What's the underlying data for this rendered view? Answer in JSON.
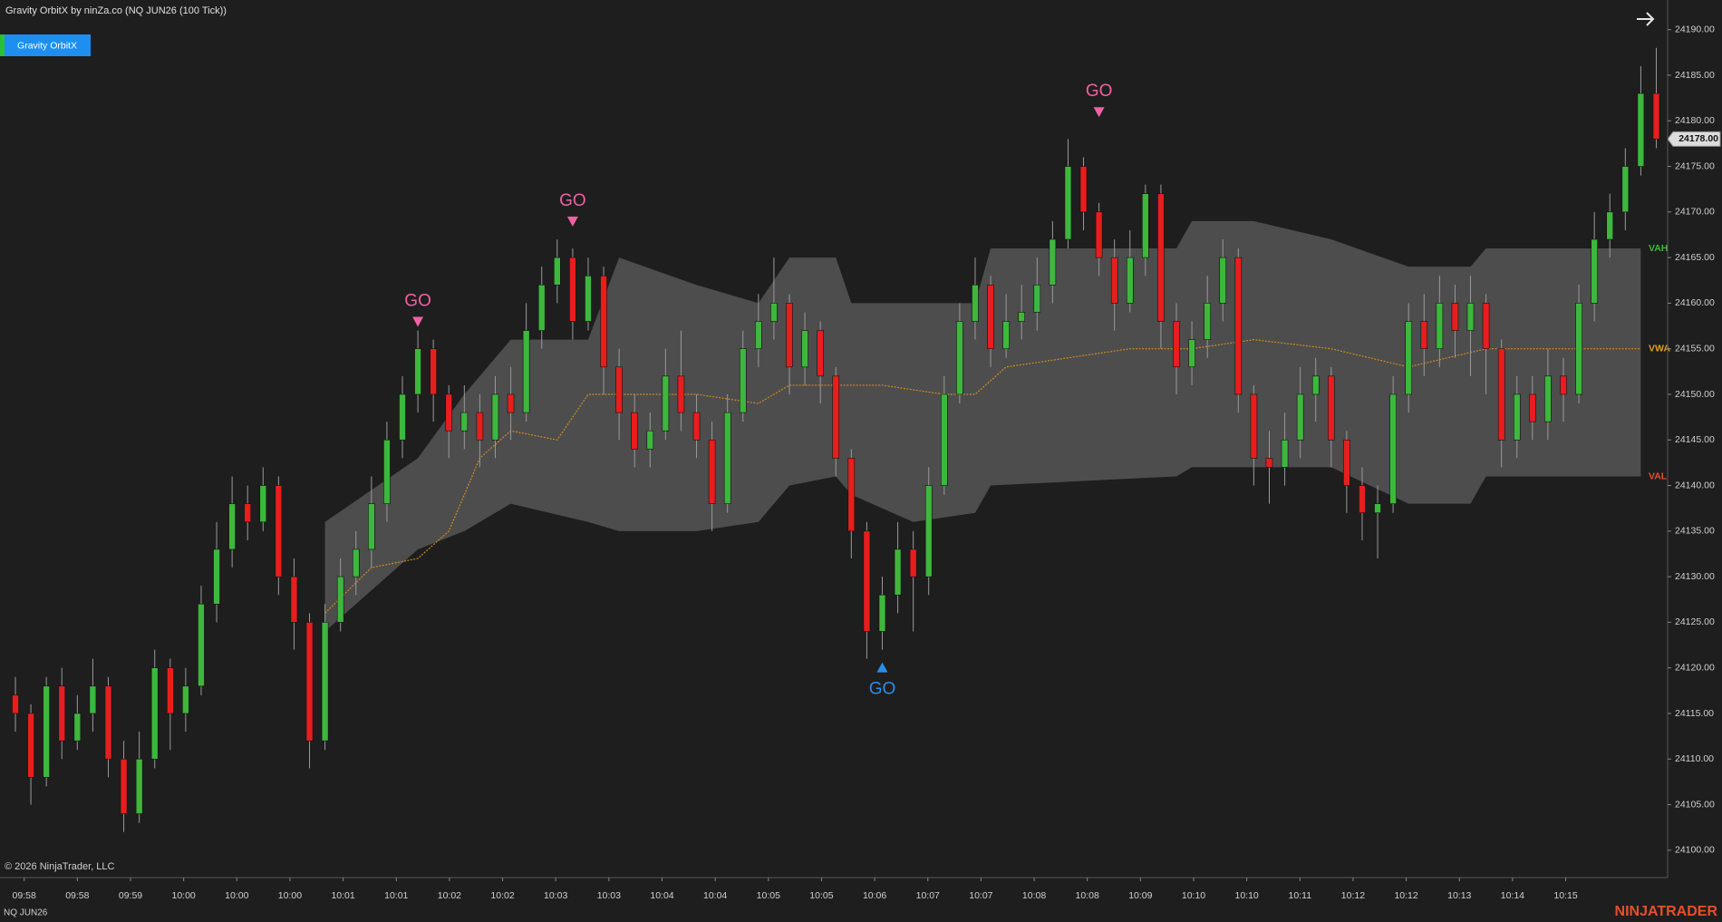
{
  "chart_data": {
    "type": "candlestick",
    "title": "Gravity OrbitX by ninZa.co (NQ JUN26 (100 Tick))",
    "button": "Gravity OrbitX",
    "copyright": "© 2026 NinjaTrader, LLC",
    "instrument": "NQ JUN26",
    "brand": "NINJATRADER",
    "up_color": "#3db83d",
    "down_color": "#e81e1e",
    "ylim": [
      24097,
      24193.25
    ],
    "yticks": [
      {
        "value": 24100,
        "label": "24100.00"
      },
      {
        "value": 24105,
        "label": "24105.00"
      },
      {
        "value": 24110,
        "label": "24110.00"
      },
      {
        "value": 24115,
        "label": "24115.00"
      },
      {
        "value": 24120,
        "label": "24120.00"
      },
      {
        "value": 24125,
        "label": "24125.00"
      },
      {
        "value": 24130,
        "label": "24130.00"
      },
      {
        "value": 24135,
        "label": "24135.00"
      },
      {
        "value": 24140,
        "label": "24140.00"
      },
      {
        "value": 24145,
        "label": "24145.00"
      },
      {
        "value": 24150,
        "label": "24150.00"
      },
      {
        "value": 24155,
        "label": "24155.00"
      },
      {
        "value": 24160,
        "label": "24160.00"
      },
      {
        "value": 24165,
        "label": "24165.00"
      },
      {
        "value": 24170,
        "label": "24170.00"
      },
      {
        "value": 24175,
        "label": "24175.00"
      },
      {
        "value": 24180,
        "label": "24180.00"
      },
      {
        "value": 24185,
        "label": "24185.00"
      },
      {
        "value": 24190,
        "label": "24190.00"
      }
    ],
    "time_labels": [
      "09:58",
      "09:58",
      "09:59",
      "10:00",
      "10:00",
      "10:00",
      "10:01",
      "10:01",
      "10:02",
      "10:02",
      "10:03",
      "10:03",
      "10:04",
      "10:04",
      "10:05",
      "10:05",
      "10:06",
      "10:07",
      "10:07",
      "10:08",
      "10:08",
      "10:09",
      "10:10",
      "10:10",
      "10:11",
      "10:12",
      "10:12",
      "10:13",
      "10:14",
      "10:15"
    ],
    "open": [
      24117,
      24115,
      24108,
      24118,
      24112,
      24115,
      24118,
      24110,
      24104,
      24110,
      24120,
      24115,
      24118,
      24127,
      24133,
      24138,
      24136,
      24140,
      24130,
      24125,
      24112,
      24125,
      24130,
      24133,
      24138,
      24145,
      24150,
      24155,
      24150,
      24146,
      24148,
      24145,
      24150,
      24148,
      24157,
      24162,
      24165,
      24158,
      24163,
      24153,
      24148,
      24144,
      24146,
      24152,
      24148,
      24145,
      24138,
      24148,
      24155,
      24158,
      24160,
      24153,
      24157,
      24152,
      24143,
      24135,
      24124,
      24128,
      24133,
      24130,
      24140,
      24150,
      24158,
      24162,
      24155,
      24158,
      24159,
      24162,
      24167,
      24175,
      24170,
      24165,
      24160,
      24165,
      24172,
      24158,
      24153,
      24156,
      24160,
      24165,
      24150,
      24143,
      24142,
      24145,
      24150,
      24152,
      24145,
      24140,
      24137,
      24138,
      24150,
      24158,
      24155,
      24160,
      24157,
      24160,
      24155,
      24145,
      24150,
      24147,
      24152,
      24150,
      24160,
      24167,
      24170,
      24175,
      24183
    ],
    "high": [
      24119,
      24116,
      24119,
      24120,
      24117,
      24121,
      24119,
      24112,
      24113,
      24122,
      24121,
      24120,
      24129,
      24136,
      24141,
      24140,
      24142,
      24141,
      24132,
      24126,
      24127,
      24132,
      24135,
      24141,
      24147,
      24152,
      24157,
      24156,
      24151,
      24151,
      24150,
      24152,
      24153,
      24160,
      24164,
      24167,
      24166,
      24165,
      24164,
      24155,
      24150,
      24148,
      24155,
      24157,
      24150,
      24147,
      24150,
      24157,
      24161,
      24165,
      24161,
      24159,
      24158,
      24153,
      24144,
      24136,
      24130,
      24136,
      24135,
      24142,
      24152,
      24160,
      24165,
      24163,
      24161,
      24162,
      24165,
      24169,
      24178,
      24176,
      24171,
      24167,
      24168,
      24173,
      24173,
      24160,
      24158,
      24163,
      24167,
      24166,
      24151,
      24146,
      24148,
      24153,
      24154,
      24153,
      24146,
      24142,
      24140,
      24152,
      24160,
      24161,
      24163,
      24162,
      24163,
      24161,
      24156,
      24152,
      24152,
      24155,
      24154,
      24162,
      24170,
      24172,
      24177,
      24186,
      24188
    ],
    "low": [
      24113,
      24105,
      24107,
      24110,
      24111,
      24113,
      24108,
      24102,
      24103,
      24109,
      24111,
      24113,
      24117,
      24125,
      24131,
      24134,
      24135,
      24128,
      24122,
      24109,
      24111,
      24124,
      24128,
      24131,
      24136,
      24143,
      24148,
      24147,
      24143,
      24144,
      24142,
      24143,
      24145,
      24147,
      24155,
      24160,
      24156,
      24157,
      24150,
      24145,
      24142,
      24142,
      24145,
      24146,
      24143,
      24135,
      24137,
      24147,
      24153,
      24156,
      24150,
      24151,
      24149,
      24141,
      24132,
      24121,
      24122,
      24126,
      24124,
      24128,
      24139,
      24149,
      24156,
      24153,
      24154,
      24156,
      24157,
      24160,
      24166,
      24168,
      24163,
      24157,
      24159,
      24163,
      24155,
      24150,
      24151,
      24154,
      24158,
      24148,
      24140,
      24138,
      24140,
      24143,
      24147,
      24142,
      24137,
      24134,
      24132,
      24137,
      24148,
      24152,
      24153,
      24154,
      24152,
      24150,
      24142,
      24143,
      24145,
      24145,
      24147,
      24149,
      24158,
      24165,
      24168,
      24174,
      24177
    ],
    "close": [
      24115,
      24108,
      24118,
      24112,
      24115,
      24118,
      24110,
      24104,
      24110,
      24120,
      24115,
      24118,
      24127,
      24133,
      24138,
      24136,
      24140,
      24130,
      24125,
      24112,
      24125,
      24130,
      24133,
      24138,
      24145,
      24150,
      24155,
      24150,
      24146,
      24148,
      24145,
      24150,
      24148,
      24157,
      24162,
      24165,
      24158,
      24163,
      24153,
      24148,
      24144,
      24146,
      24152,
      24148,
      24145,
      24138,
      24148,
      24155,
      24158,
      24160,
      24153,
      24157,
      24152,
      24143,
      24135,
      24124,
      24128,
      24133,
      24130,
      24140,
      24150,
      24158,
      24162,
      24155,
      24158,
      24159,
      24162,
      24167,
      24175,
      24170,
      24165,
      24160,
      24165,
      24172,
      24158,
      24153,
      24156,
      24160,
      24165,
      24150,
      24143,
      24142,
      24145,
      24150,
      24152,
      24145,
      24140,
      24137,
      24138,
      24150,
      24158,
      24155,
      24160,
      24157,
      24160,
      24155,
      24145,
      24150,
      24147,
      24152,
      24150,
      24160,
      24167,
      24170,
      24175,
      24183,
      24178
    ],
    "band": {
      "color": "#4d4d4d",
      "x": [
        20,
        26,
        29,
        32,
        37,
        39,
        44,
        48,
        50,
        53,
        54,
        58,
        62,
        63,
        75,
        76,
        80,
        85,
        90,
        94,
        95,
        105
      ],
      "upper": [
        24136,
        24143,
        24150,
        24156,
        24156,
        24165,
        24162,
        24160,
        24165,
        24165,
        24160,
        24160,
        24160,
        24166,
        24166,
        24169,
        24169,
        24167,
        24164,
        24164,
        24166,
        24166
      ],
      "lower": [
        24124,
        24133,
        24135,
        24138,
        24136,
        24135,
        24135,
        24136,
        24140,
        24141,
        24139,
        24136,
        24137,
        24140,
        24141,
        24142,
        24142,
        24142,
        24138,
        24138,
        24141,
        24141
      ]
    },
    "vwap": {
      "color": "#d08a20",
      "x": [
        20,
        23,
        26,
        28,
        30,
        32,
        35,
        37,
        40,
        44,
        48,
        50,
        53,
        56,
        60,
        62,
        64,
        68,
        72,
        76,
        80,
        85,
        90,
        95,
        100,
        105
      ],
      "values": [
        24126,
        24131,
        24132,
        24135,
        24143,
        24146,
        24145,
        24150,
        24150,
        24150,
        24149,
        24151,
        24151,
        24151,
        24150,
        24150,
        24153,
        24154,
        24155,
        24155,
        24156,
        24155,
        24153,
        24155,
        24155,
        24155
      ]
    },
    "signals": [
      {
        "text": "GO",
        "direction": "down",
        "index": 26,
        "value": 24158,
        "color": "#f062a4"
      },
      {
        "text": "GO",
        "direction": "down",
        "index": 36,
        "value": 24169,
        "color": "#f062a4"
      },
      {
        "text": "GO",
        "direction": "up",
        "index": 56,
        "value": 24120,
        "color": "#2a8fe8"
      },
      {
        "text": "GO",
        "direction": "down",
        "index": 70,
        "value": 24181,
        "color": "#f062a4"
      }
    ],
    "levels": [
      {
        "label": "VAH",
        "value": 24166,
        "color": "#3db83d"
      },
      {
        "label": "VWA",
        "value": 24155,
        "color": "#e0a020"
      },
      {
        "label": "VAL",
        "value": 24141,
        "color": "#e8502a"
      }
    ],
    "last_price": {
      "value": 24178,
      "label": "24178.00"
    }
  }
}
